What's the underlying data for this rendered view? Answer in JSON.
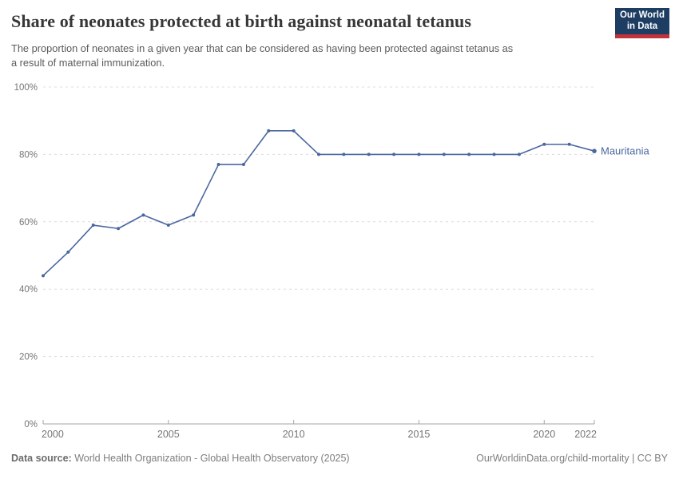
{
  "header": {
    "title": "Share of neonates protected at birth against neonatal tetanus",
    "subtitle": "The proportion of neonates in a given year that can be considered as having been protected against tetanus as\na result of maternal immunization.",
    "logo": {
      "line1": "Our World",
      "line2": "in Data"
    }
  },
  "chart_data": {
    "type": "line",
    "title": "Share of neonates protected at birth against neonatal tetanus",
    "x": [
      2000,
      2001,
      2002,
      2003,
      2004,
      2005,
      2006,
      2007,
      2008,
      2009,
      2010,
      2011,
      2012,
      2013,
      2014,
      2015,
      2016,
      2017,
      2018,
      2019,
      2020,
      2021,
      2022
    ],
    "series": [
      {
        "name": "Mauritania",
        "color": "#4a67a0",
        "values": [
          44,
          51,
          59,
          58,
          62,
          59,
          62,
          77,
          77,
          87,
          87,
          80,
          80,
          80,
          80,
          80,
          80,
          80,
          80,
          80,
          83,
          83,
          81
        ]
      }
    ],
    "xlim": [
      2000,
      2022
    ],
    "ylim": [
      0,
      100
    ],
    "xticks": [
      2000,
      2005,
      2010,
      2015,
      2020,
      2022
    ],
    "yticks": [
      0,
      20,
      40,
      60,
      80,
      100
    ],
    "ytick_suffix": "%",
    "grid": "horizontal-dashed",
    "legend": "end-of-line-label"
  },
  "footer": {
    "datasource_label": "Data source:",
    "datasource_value": "World Health Organization - Global Health Observatory (2025)",
    "attribution": "OurWorldinData.org/child-mortality | CC BY"
  },
  "colors": {
    "series": "#4a67a0",
    "title_text": "#373737",
    "subtitle_text": "#5b5b5b",
    "tick_text": "#757575",
    "gridline": "#dcdcdc",
    "axis_line": "#a6a6a6",
    "footer_text": "#7d7d7d",
    "logo_bg": "#1d3d63",
    "logo_red": "#c0333c"
  }
}
